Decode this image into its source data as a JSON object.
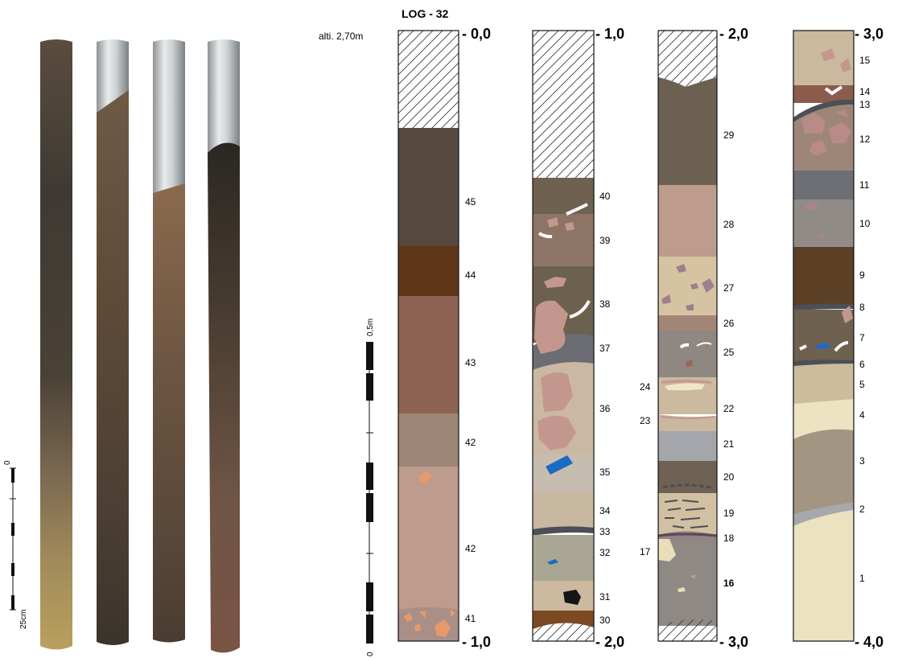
{
  "log_title": "LOG - 32",
  "altitude_label": "alti. 2,70m",
  "scale_bars": {
    "photo_scale": {
      "start_label": "0",
      "end_label": "25cm"
    },
    "log_scale": {
      "start_label": "0",
      "end_label": "0,5m"
    }
  },
  "core_photos": [
    {
      "name": "core-1",
      "label": ""
    },
    {
      "name": "core-2",
      "label": ""
    },
    {
      "name": "core-3",
      "label": ""
    },
    {
      "name": "core-4",
      "label": ""
    }
  ],
  "depth_labels": {
    "col1_top": "- 0,0",
    "col1_bottom": "- 1,0",
    "col2_top": "- 1,0",
    "col2_bottom": "- 2,0",
    "col3_top": "- 2,0",
    "col3_bottom": "- 3,0",
    "col4_top": "- 3,0",
    "col4_bottom": "- 4,0"
  },
  "layers": {
    "col1": [
      {
        "id": "45",
        "color": "#554940"
      },
      {
        "id": "44",
        "color": "#5e3618"
      },
      {
        "id": "43",
        "color": "#8d6253"
      },
      {
        "id": "42",
        "color": "#9d8675"
      },
      {
        "id": "42",
        "color": "#bd9b8d"
      },
      {
        "id": "41",
        "color": "#a98f88"
      }
    ],
    "col2": [
      {
        "id": "40",
        "color": "#6e6150"
      },
      {
        "id": "39",
        "color": "#8e7464"
      },
      {
        "id": "38",
        "color": "#6c604f"
      },
      {
        "id": "37",
        "color": "#6b6d72"
      },
      {
        "id": "36",
        "color": "#cbb8a2"
      },
      {
        "id": "35",
        "color": "#c7bcb0"
      },
      {
        "id": "34",
        "color": "#c9b8a0"
      },
      {
        "id": "33",
        "color": "#4c4f55"
      },
      {
        "id": "32",
        "color": "#a9a693"
      },
      {
        "id": "31",
        "color": "#cdb99f"
      },
      {
        "id": "30",
        "color": "#7b4a23"
      }
    ],
    "col3": [
      {
        "id": "29",
        "color": "#6c6151"
      },
      {
        "id": "28",
        "color": "#bd9b8d"
      },
      {
        "id": "27",
        "color": "#d6c3a1"
      },
      {
        "id": "26",
        "color": "#a48676"
      },
      {
        "id": "25",
        "color": "#8f8782"
      },
      {
        "id": "24",
        "color": "#cbb9a0"
      },
      {
        "id": "23",
        "color": "#c9b79f"
      },
      {
        "id": "22",
        "color": "#cbb9a0"
      },
      {
        "id": "21",
        "color": "#a4a6ac"
      },
      {
        "id": "20",
        "color": "#6f6252"
      },
      {
        "id": "19",
        "color": "#d2c0a3"
      },
      {
        "id": "18",
        "color": "#9c7d86"
      },
      {
        "id": "17",
        "color": "#e8dfb8"
      },
      {
        "id": "16",
        "color": "#8f8986"
      }
    ],
    "col4": [
      {
        "id": "15",
        "color": "#cbb99f"
      },
      {
        "id": "14",
        "color": "#8b5c4c"
      },
      {
        "id": "13",
        "color": "#4c4f55"
      },
      {
        "id": "12",
        "color": "#9d8677"
      },
      {
        "id": "11",
        "color": "#6e6f74"
      },
      {
        "id": "10",
        "color": "#918b88"
      },
      {
        "id": "9",
        "color": "#5b4025"
      },
      {
        "id": "8",
        "color": "#4c4f55"
      },
      {
        "id": "7",
        "color": "#6e6150"
      },
      {
        "id": "6",
        "color": "#4c4f55"
      },
      {
        "id": "5",
        "color": "#cdbb9e"
      },
      {
        "id": "4",
        "color": "#ebe3c1"
      },
      {
        "id": "3",
        "color": "#a29682"
      },
      {
        "id": "2",
        "color": "#a7a8ab"
      },
      {
        "id": "1",
        "color": "#ebe2bf"
      }
    ]
  },
  "colors": {
    "outline": "#111111",
    "hatch": "#333333",
    "clast_pink": "#c4978e",
    "clast_mauve": "#9f7f8e",
    "clast_orange": "#e59a6d",
    "clast_blue": "#1a6bc4",
    "clast_black": "#151515"
  }
}
